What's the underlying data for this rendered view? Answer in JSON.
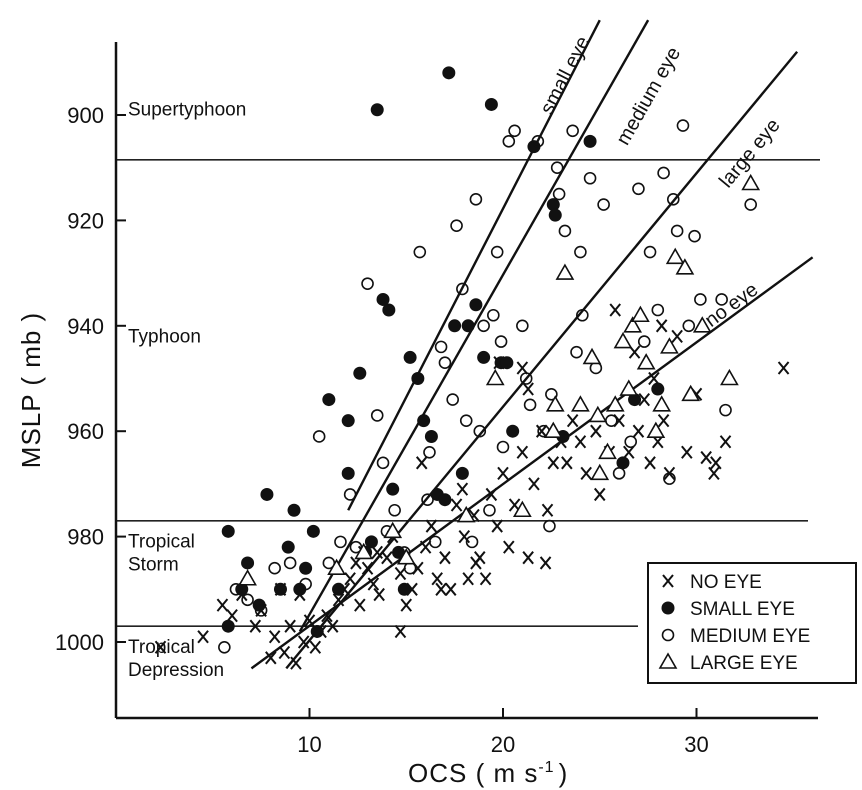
{
  "chart_data": {
    "type": "scatter",
    "xlabel": "OCS ( m s",
    "xlabel_sup": "-1",
    "xlabel_close": ")",
    "ylabel": "MSLP ( mb )",
    "xlim": [
      0,
      36
    ],
    "ylim": [
      1014,
      882
    ],
    "x_reversed": false,
    "y_inverted": true,
    "grid": false,
    "x_ticks": [
      10,
      20,
      30
    ],
    "y_ticks": [
      900,
      920,
      940,
      960,
      980,
      1000
    ],
    "categories_thresholds": [
      {
        "pressure": 908.5,
        "label_lines": [
          "Supertyphoon"
        ],
        "label_pressure": 899
      },
      {
        "pressure": 977,
        "label_lines": [
          "Typhoon"
        ],
        "label_pressure": 942
      },
      {
        "pressure": 997,
        "label_lines": [
          "Tropical",
          "Storm"
        ],
        "label_pressure": 983
      },
      {
        "pressure": null,
        "label_lines": [
          "Tropical",
          "Depression"
        ],
        "label_pressure": 1003
      }
    ],
    "fit_lines": [
      {
        "name": "small eye",
        "points": [
          [
            12.0,
            975
          ],
          [
            25.0,
            882
          ]
        ],
        "label_x": 23.5,
        "label_y": 893
      },
      {
        "name": "medium eye",
        "points": [
          [
            9.5,
            998
          ],
          [
            27.5,
            882
          ]
        ],
        "label_x": 27.8,
        "label_y": 897
      },
      {
        "name": "large eye",
        "points": [
          [
            8.8,
            1005
          ],
          [
            35.2,
            888
          ]
        ],
        "label_x": 33.0,
        "label_y": 908
      },
      {
        "name": "no eye",
        "points": [
          [
            7.0,
            1005
          ],
          [
            36.0,
            927
          ]
        ],
        "label_x": 32.0,
        "label_y": 937
      }
    ],
    "legend": {
      "position": "bottom-right",
      "entries": [
        {
          "marker": "x",
          "label": "NO EYE"
        },
        {
          "marker": "filled-circle",
          "label": "SMALL EYE"
        },
        {
          "marker": "open-circle",
          "label": "MEDIUM EYE"
        },
        {
          "marker": "triangle",
          "label": "LARGE EYE"
        }
      ]
    },
    "series": [
      {
        "marker": "x",
        "points": [
          [
            2.3,
            1001
          ],
          [
            4.5,
            999
          ],
          [
            5.5,
            993
          ],
          [
            6.0,
            995
          ],
          [
            6.5,
            991
          ],
          [
            7.2,
            997
          ],
          [
            7.5,
            994
          ],
          [
            8.0,
            1003
          ],
          [
            8.2,
            999
          ],
          [
            8.5,
            990
          ],
          [
            8.7,
            1002
          ],
          [
            9.0,
            997
          ],
          [
            9.3,
            1004
          ],
          [
            9.7,
            1000
          ],
          [
            10.0,
            996
          ],
          [
            10.3,
            1001
          ],
          [
            10.6,
            998
          ],
          [
            10.9,
            995
          ],
          [
            11.2,
            997
          ],
          [
            11.5,
            992
          ],
          [
            11.8,
            990
          ],
          [
            12.1,
            988
          ],
          [
            12.4,
            985
          ],
          [
            12.8,
            983
          ],
          [
            13.0,
            986
          ],
          [
            13.3,
            989
          ],
          [
            13.6,
            991
          ],
          [
            14.0,
            984
          ],
          [
            14.3,
            980
          ],
          [
            14.7,
            987
          ],
          [
            15.0,
            993
          ],
          [
            15.3,
            990
          ],
          [
            15.6,
            986
          ],
          [
            16.0,
            982
          ],
          [
            16.3,
            978
          ],
          [
            16.6,
            988
          ],
          [
            17.0,
            984
          ],
          [
            17.3,
            990
          ],
          [
            17.6,
            974
          ],
          [
            18.0,
            980
          ],
          [
            18.2,
            988
          ],
          [
            18.5,
            976
          ],
          [
            18.8,
            984
          ],
          [
            19.1,
            988
          ],
          [
            19.4,
            972
          ],
          [
            19.7,
            978
          ],
          [
            20.0,
            968
          ],
          [
            20.3,
            982
          ],
          [
            20.6,
            974
          ],
          [
            21.0,
            964
          ],
          [
            21.3,
            952
          ],
          [
            21.6,
            970
          ],
          [
            22.0,
            960
          ],
          [
            22.3,
            975
          ],
          [
            22.6,
            966
          ],
          [
            23.0,
            962
          ],
          [
            23.3,
            966
          ],
          [
            23.6,
            958
          ],
          [
            24.0,
            962
          ],
          [
            24.3,
            968
          ],
          [
            25.0,
            972
          ],
          [
            25.5,
            964
          ],
          [
            26.0,
            958
          ],
          [
            26.5,
            964
          ],
          [
            27.0,
            960
          ],
          [
            27.3,
            954
          ],
          [
            27.6,
            966
          ],
          [
            28.0,
            962
          ],
          [
            28.3,
            958
          ],
          [
            28.6,
            968
          ],
          [
            29.0,
            942
          ],
          [
            29.5,
            964
          ],
          [
            30.0,
            953
          ],
          [
            30.5,
            965
          ],
          [
            31.0,
            966
          ],
          [
            31.5,
            962
          ],
          [
            34.5,
            948
          ],
          [
            13.5,
            983
          ],
          [
            14.7,
            998
          ],
          [
            19.8,
            947
          ],
          [
            22.2,
            985
          ],
          [
            16.8,
            990
          ],
          [
            21.3,
            984
          ],
          [
            24.8,
            960
          ],
          [
            26.8,
            945
          ],
          [
            28.2,
            940
          ],
          [
            30.9,
            968
          ],
          [
            27.8,
            950
          ],
          [
            25.8,
            937
          ],
          [
            21.0,
            948
          ],
          [
            18.6,
            985
          ],
          [
            9.5,
            991
          ],
          [
            12.6,
            993
          ],
          [
            15.8,
            966
          ],
          [
            17.9,
            971
          ]
        ]
      },
      {
        "marker": "filled-circle",
        "points": [
          [
            5.8,
            979
          ],
          [
            5.8,
            997
          ],
          [
            6.5,
            990
          ],
          [
            6.8,
            985
          ],
          [
            7.4,
            993
          ],
          [
            7.8,
            972
          ],
          [
            8.5,
            990
          ],
          [
            8.9,
            982
          ],
          [
            9.2,
            975
          ],
          [
            9.5,
            990
          ],
          [
            9.8,
            986
          ],
          [
            10.2,
            979
          ],
          [
            10.4,
            998
          ],
          [
            11.0,
            954
          ],
          [
            11.5,
            990
          ],
          [
            12.0,
            968
          ],
          [
            12.0,
            958
          ],
          [
            12.6,
            949
          ],
          [
            12.9,
            983
          ],
          [
            13.2,
            981
          ],
          [
            13.5,
            899
          ],
          [
            13.8,
            935
          ],
          [
            14.1,
            937
          ],
          [
            14.3,
            971
          ],
          [
            14.6,
            983
          ],
          [
            14.9,
            990
          ],
          [
            15.2,
            946
          ],
          [
            15.6,
            950
          ],
          [
            15.9,
            958
          ],
          [
            16.3,
            961
          ],
          [
            16.6,
            972
          ],
          [
            17.2,
            892
          ],
          [
            17.5,
            940
          ],
          [
            17.9,
            968
          ],
          [
            18.2,
            940
          ],
          [
            18.6,
            936
          ],
          [
            19.0,
            946
          ],
          [
            19.4,
            898
          ],
          [
            19.9,
            947
          ],
          [
            20.2,
            947
          ],
          [
            21.6,
            906
          ],
          [
            22.6,
            917
          ],
          [
            22.7,
            919
          ],
          [
            23.1,
            961
          ],
          [
            24.5,
            905
          ],
          [
            26.8,
            954
          ],
          [
            28.0,
            952
          ],
          [
            26.2,
            966
          ],
          [
            17.0,
            973
          ],
          [
            20.5,
            960
          ]
        ]
      },
      {
        "marker": "open-circle",
        "points": [
          [
            5.6,
            1001
          ],
          [
            6.2,
            990
          ],
          [
            6.8,
            992
          ],
          [
            7.5,
            994
          ],
          [
            8.2,
            986
          ],
          [
            9.0,
            985
          ],
          [
            9.8,
            989
          ],
          [
            10.5,
            961
          ],
          [
            11.0,
            985
          ],
          [
            11.6,
            981
          ],
          [
            12.1,
            972
          ],
          [
            12.4,
            982
          ],
          [
            13.0,
            932
          ],
          [
            13.5,
            957
          ],
          [
            14.0,
            979
          ],
          [
            14.4,
            975
          ],
          [
            14.9,
            983
          ],
          [
            15.2,
            986
          ],
          [
            15.7,
            926
          ],
          [
            16.1,
            973
          ],
          [
            16.5,
            981
          ],
          [
            16.8,
            944
          ],
          [
            17.0,
            947
          ],
          [
            17.4,
            954
          ],
          [
            17.6,
            921
          ],
          [
            17.9,
            933
          ],
          [
            18.1,
            958
          ],
          [
            18.4,
            981
          ],
          [
            18.6,
            916
          ],
          [
            18.8,
            960
          ],
          [
            19.0,
            940
          ],
          [
            19.3,
            975
          ],
          [
            19.5,
            938
          ],
          [
            19.7,
            926
          ],
          [
            20.0,
            963
          ],
          [
            20.3,
            905
          ],
          [
            20.6,
            903
          ],
          [
            21.0,
            940
          ],
          [
            21.4,
            955
          ],
          [
            21.8,
            905
          ],
          [
            22.1,
            960
          ],
          [
            22.4,
            978
          ],
          [
            22.8,
            910
          ],
          [
            22.9,
            915
          ],
          [
            23.2,
            922
          ],
          [
            23.6,
            903
          ],
          [
            23.8,
            945
          ],
          [
            24.1,
            938
          ],
          [
            24.5,
            912
          ],
          [
            24.8,
            948
          ],
          [
            25.2,
            917
          ],
          [
            25.6,
            958
          ],
          [
            26.0,
            968
          ],
          [
            26.6,
            962
          ],
          [
            27.0,
            914
          ],
          [
            27.3,
            943
          ],
          [
            27.6,
            926
          ],
          [
            28.0,
            937
          ],
          [
            28.3,
            911
          ],
          [
            28.6,
            969
          ],
          [
            28.8,
            916
          ],
          [
            29.0,
            922
          ],
          [
            29.3,
            902
          ],
          [
            29.6,
            940
          ],
          [
            29.9,
            923
          ],
          [
            30.2,
            935
          ],
          [
            31.3,
            935
          ],
          [
            31.5,
            956
          ],
          [
            32.8,
            917
          ],
          [
            21.2,
            950
          ],
          [
            19.9,
            943
          ],
          [
            16.2,
            964
          ],
          [
            13.8,
            966
          ],
          [
            22.5,
            953
          ],
          [
            24.0,
            926
          ]
        ]
      },
      {
        "marker": "triangle",
        "points": [
          [
            6.8,
            988
          ],
          [
            11.4,
            986
          ],
          [
            12.8,
            983
          ],
          [
            14.3,
            979
          ],
          [
            15.0,
            984
          ],
          [
            18.1,
            976
          ],
          [
            19.6,
            950
          ],
          [
            21.0,
            975
          ],
          [
            22.6,
            960
          ],
          [
            22.7,
            955
          ],
          [
            23.2,
            930
          ],
          [
            24.6,
            946
          ],
          [
            24.9,
            957
          ],
          [
            25.0,
            968
          ],
          [
            25.4,
            964
          ],
          [
            25.8,
            955
          ],
          [
            26.2,
            943
          ],
          [
            26.7,
            940
          ],
          [
            27.1,
            938
          ],
          [
            27.4,
            947
          ],
          [
            27.9,
            960
          ],
          [
            28.2,
            955
          ],
          [
            28.6,
            944
          ],
          [
            28.9,
            927
          ],
          [
            29.4,
            929
          ],
          [
            29.7,
            953
          ],
          [
            30.3,
            940
          ],
          [
            31.7,
            950
          ],
          [
            32.8,
            913
          ],
          [
            24.0,
            955
          ],
          [
            26.5,
            952
          ]
        ]
      }
    ]
  }
}
